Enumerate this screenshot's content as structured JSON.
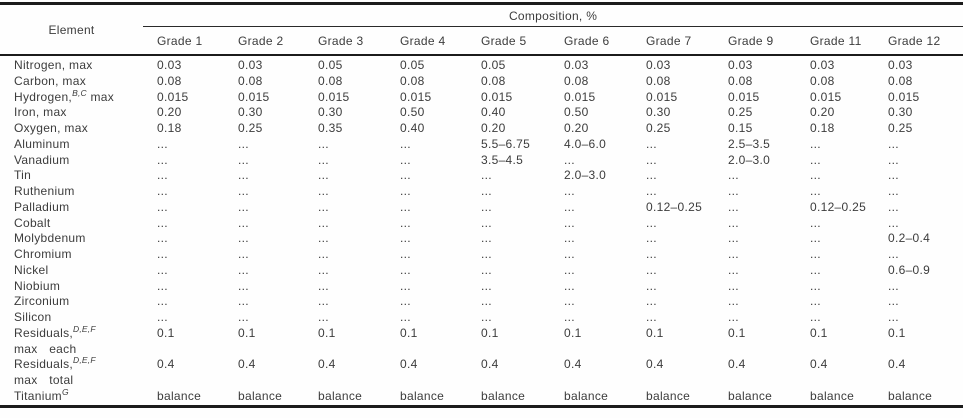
{
  "table": {
    "group_header": "Composition, %",
    "element_header": "Element",
    "columns": [
      "Grade 1",
      "Grade 2",
      "Grade 3",
      "Grade 4",
      "Grade 5",
      "Grade 6",
      "Grade 7",
      "Grade 9",
      "Grade 11",
      "Grade 12"
    ],
    "rows": [
      {
        "label": "Nitrogen, max",
        "values": [
          "0.03",
          "0.03",
          "0.05",
          "0.05",
          "0.05",
          "0.03",
          "0.03",
          "0.03",
          "0.03",
          "0.03"
        ]
      },
      {
        "label": "Carbon, max",
        "values": [
          "0.08",
          "0.08",
          "0.08",
          "0.08",
          "0.08",
          "0.08",
          "0.08",
          "0.08",
          "0.08",
          "0.08"
        ]
      },
      {
        "label": "Hydrogen,",
        "sup": "B,C",
        "after": " max",
        "values": [
          "0.015",
          "0.015",
          "0.015",
          "0.015",
          "0.015",
          "0.015",
          "0.015",
          "0.015",
          "0.015",
          "0.015"
        ]
      },
      {
        "label": "Iron, max",
        "values": [
          "0.20",
          "0.30",
          "0.30",
          "0.50",
          "0.40",
          "0.50",
          "0.30",
          "0.25",
          "0.20",
          "0.30"
        ]
      },
      {
        "label": "Oxygen, max",
        "values": [
          "0.18",
          "0.25",
          "0.35",
          "0.40",
          "0.20",
          "0.20",
          "0.25",
          "0.15",
          "0.18",
          "0.25"
        ]
      },
      {
        "label": "Aluminum",
        "values": [
          "...",
          "...",
          "...",
          "...",
          "5.5–6.75",
          "4.0–6.0",
          "...",
          "2.5–3.5",
          "...",
          "..."
        ]
      },
      {
        "label": "Vanadium",
        "values": [
          "...",
          "...",
          "...",
          "...",
          "3.5–4.5",
          "...",
          "...",
          "2.0–3.0",
          "...",
          "..."
        ]
      },
      {
        "label": "Tin",
        "values": [
          "...",
          "...",
          "...",
          "...",
          "...",
          "2.0–3.0",
          "...",
          "...",
          "...",
          "..."
        ]
      },
      {
        "label": "Ruthenium",
        "values": [
          "...",
          "...",
          "...",
          "...",
          "...",
          "...",
          "...",
          "...",
          "...",
          "..."
        ]
      },
      {
        "label": "Palladium",
        "values": [
          "...",
          "...",
          "...",
          "...",
          "...",
          "...",
          "0.12–0.25",
          "...",
          "0.12–0.25",
          "..."
        ]
      },
      {
        "label": "Cobalt",
        "values": [
          "...",
          "...",
          "...",
          "...",
          "...",
          "...",
          "...",
          "...",
          "...",
          "..."
        ]
      },
      {
        "label": "Molybdenum",
        "values": [
          "...",
          "...",
          "...",
          "...",
          "...",
          "...",
          "...",
          "...",
          "...",
          "0.2–0.4"
        ]
      },
      {
        "label": "Chromium",
        "values": [
          "...",
          "...",
          "...",
          "...",
          "...",
          "...",
          "...",
          "...",
          "...",
          "..."
        ]
      },
      {
        "label": "Nickel",
        "values": [
          "...",
          "...",
          "...",
          "...",
          "...",
          "...",
          "...",
          "...",
          "...",
          "0.6–0.9"
        ]
      },
      {
        "label": "Niobium",
        "values": [
          "...",
          "...",
          "...",
          "...",
          "...",
          "...",
          "...",
          "...",
          "...",
          "..."
        ]
      },
      {
        "label": "Zirconium",
        "values": [
          "...",
          "...",
          "...",
          "...",
          "...",
          "...",
          "...",
          "...",
          "...",
          "..."
        ]
      },
      {
        "label": "Silicon",
        "values": [
          "...",
          "...",
          "...",
          "...",
          "...",
          "...",
          "...",
          "...",
          "...",
          "..."
        ]
      },
      {
        "label": "Residuals,",
        "sup": "D,E,F",
        "line2": "max each",
        "values": [
          "0.1",
          "0.1",
          "0.1",
          "0.1",
          "0.1",
          "0.1",
          "0.1",
          "0.1",
          "0.1",
          "0.1"
        ]
      },
      {
        "label": "Residuals,",
        "sup": "D,E,F",
        "line2": "max total",
        "values": [
          "0.4",
          "0.4",
          "0.4",
          "0.4",
          "0.4",
          "0.4",
          "0.4",
          "0.4",
          "0.4",
          "0.4"
        ]
      },
      {
        "label": "Titanium",
        "sup": "G",
        "values": [
          "balance",
          "balance",
          "balance",
          "balance",
          "balance",
          "balance",
          "balance",
          "balance",
          "balance",
          "balance"
        ]
      }
    ],
    "colors": {
      "rule": "#1b1b1b",
      "text": "#3c3c3c"
    }
  }
}
